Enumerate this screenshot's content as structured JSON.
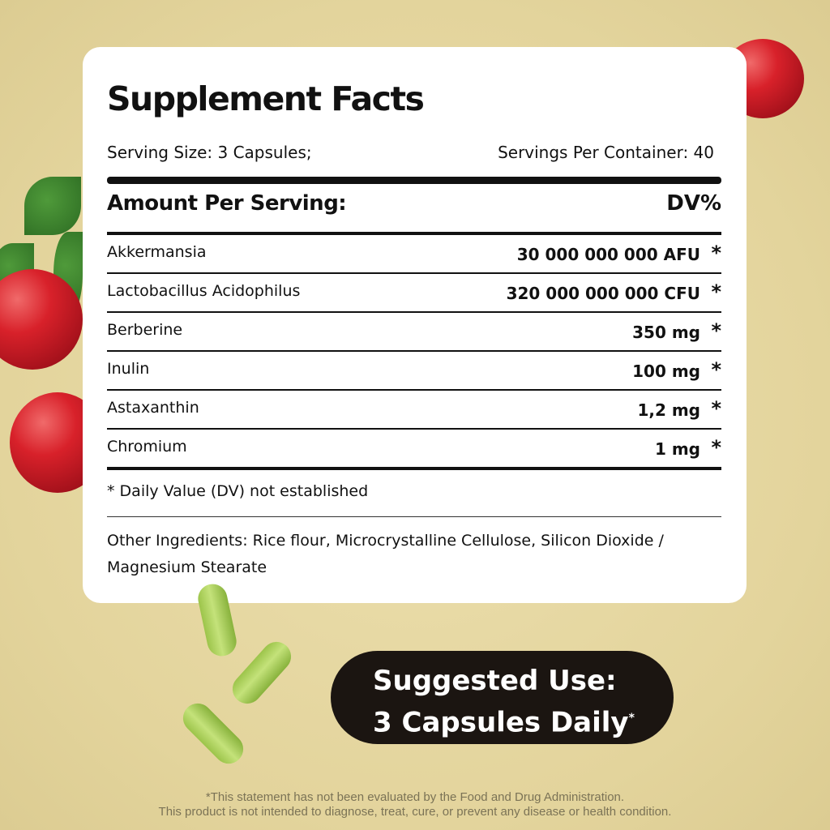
{
  "title": "Supplement Facts",
  "serving_size": "Serving Size: 3 Capsules;",
  "servings_per_container": "Servings Per Container: 40",
  "amount_header": "Amount Per Serving:",
  "dv_header": "DV%",
  "ingredients": [
    {
      "name": "Akkermansia",
      "amount": "30 000 000 000 AFU",
      "dv": "*"
    },
    {
      "name": "Lactobacillus Acidophilus",
      "amount": "320 000 000 000 CFU",
      "dv": "*"
    },
    {
      "name": "Berberine",
      "amount": "350 mg",
      "dv": "*"
    },
    {
      "name": "Inulin",
      "amount": "100 mg",
      "dv": "*"
    },
    {
      "name": "Astaxanthin",
      "amount": "1,2 mg",
      "dv": "*"
    },
    {
      "name": "Chromium",
      "amount": "1 mg",
      "dv": "*"
    }
  ],
  "footnote": "* Daily Value (DV) not established",
  "other_ingredients": "Other Ingredients: Rice flour, Microcrystalline Cellulose, Silicon Dioxide / Magnesium Stearate",
  "suggested_use": {
    "line1": "Suggested Use:",
    "line2": "3 Capsules Daily",
    "mark": "*"
  },
  "disclaimer": {
    "line1": "*This statement has not been evaluated by the Food and Drug Administration.",
    "line2": "This product is not intended to diagnose, treat, cure, or prevent any disease or health condition."
  },
  "colors": {
    "background": "#e6d8a0",
    "card": "#ffffff",
    "pill": "#1b1511",
    "berry": "#d8212a",
    "capsule": "#a8cf58"
  }
}
